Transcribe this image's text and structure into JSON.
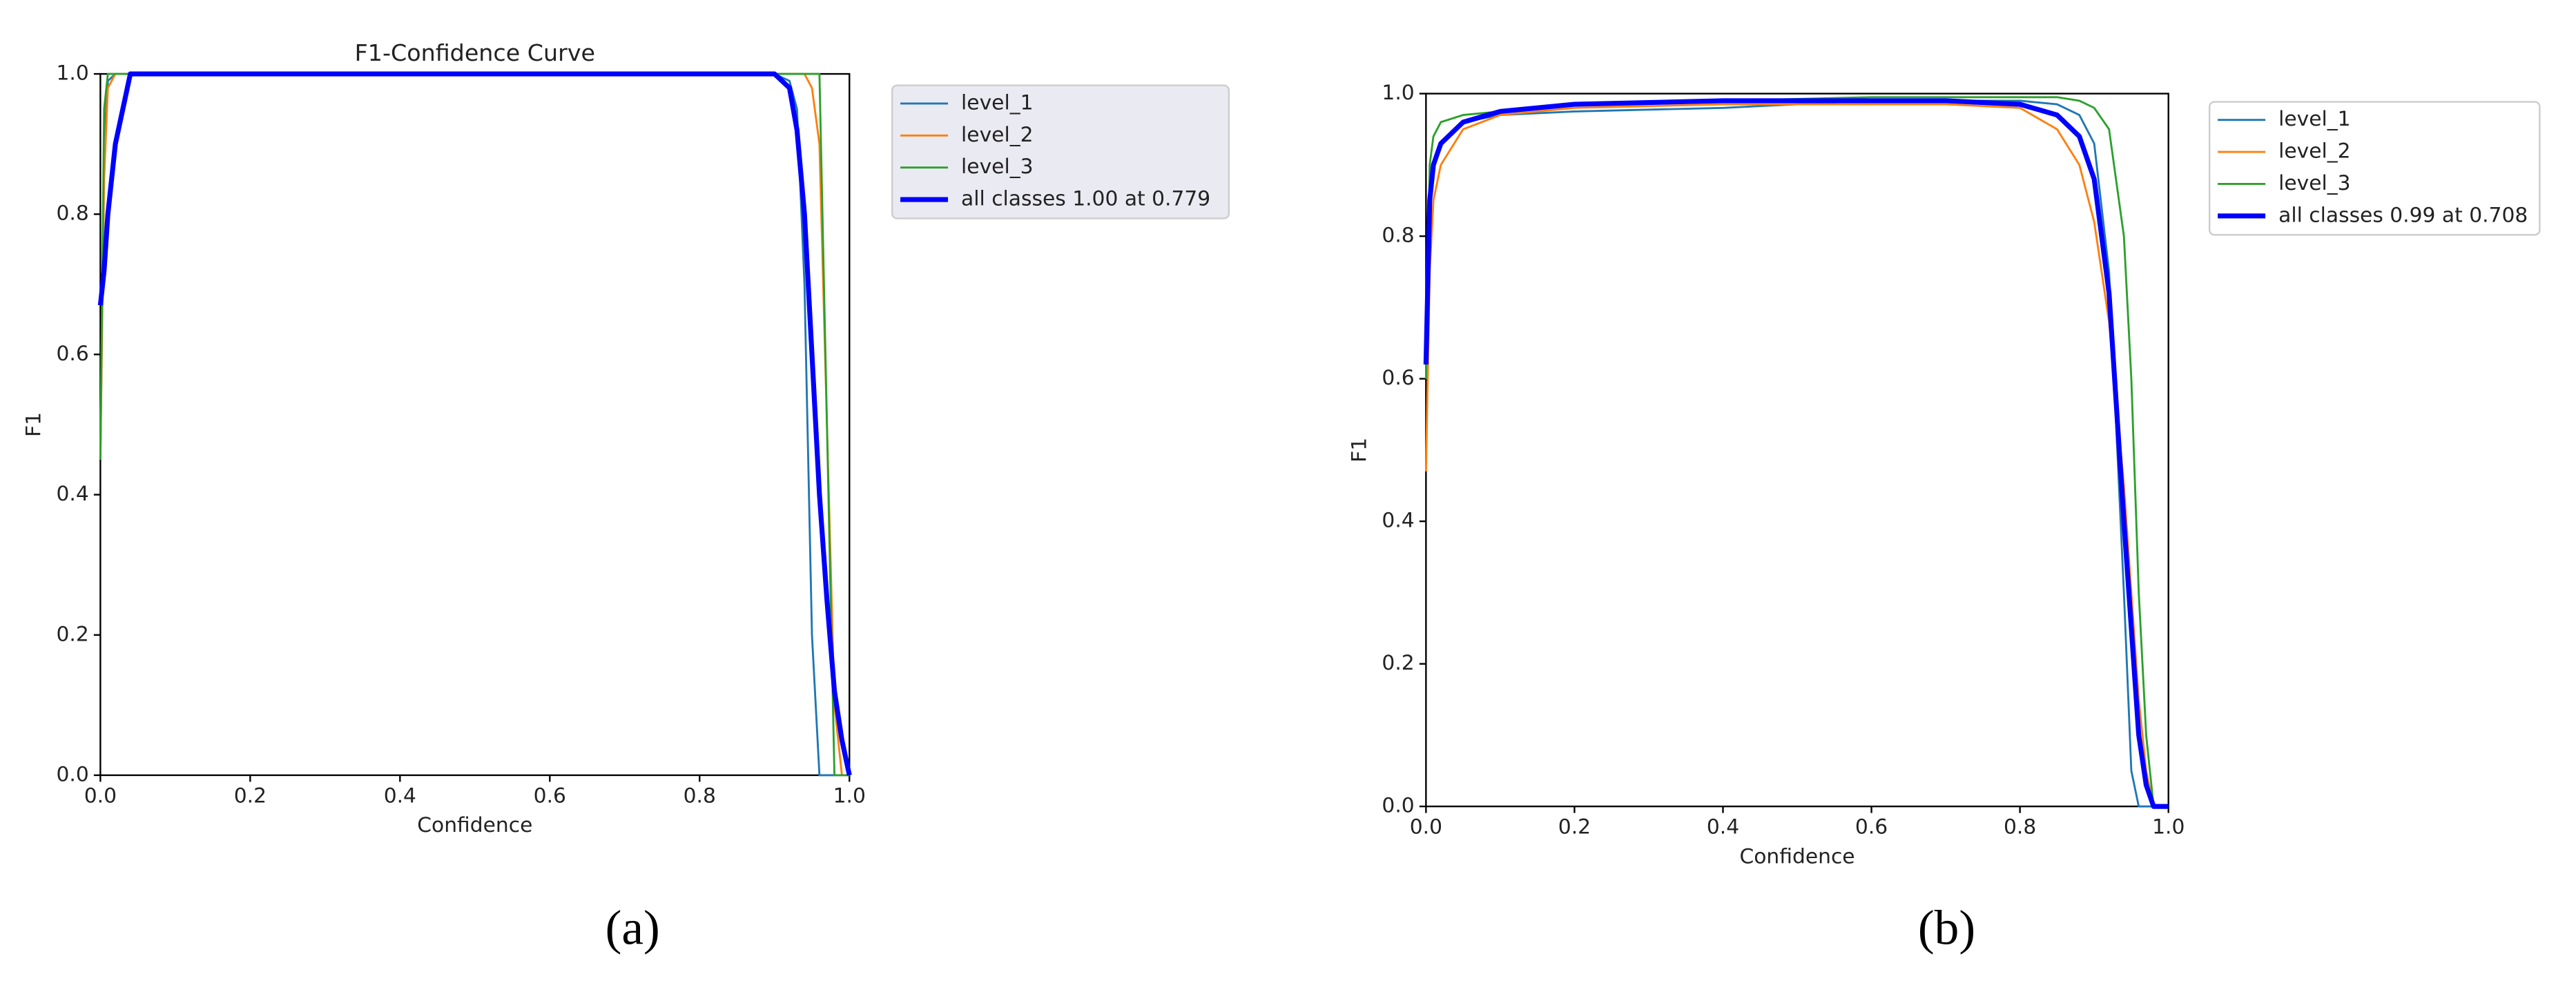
{
  "chart_data": [
    {
      "type": "line",
      "title": "F1-Confidence Curve",
      "xlabel": "Confidence",
      "ylabel": "F1",
      "caption": "(a)",
      "xlim": [
        0,
        1
      ],
      "ylim": [
        0,
        1
      ],
      "xticks": [
        {
          "value": 0,
          "label": "0.0"
        },
        0.2,
        0.4,
        0.6,
        0.8,
        {
          "value": 1,
          "label": "1.0"
        }
      ],
      "yticks": [
        {
          "value": 0,
          "label": "0.0"
        },
        0.2,
        0.4,
        0.6,
        0.8,
        {
          "value": 1,
          "label": "1.0"
        }
      ],
      "x": [
        0,
        0.005,
        0.01,
        0.02,
        0.04,
        0.1,
        0.3,
        0.5,
        0.7,
        0.9,
        0.92,
        0.93,
        0.94,
        0.95,
        0.96,
        0.97,
        0.98,
        0.99,
        1.0
      ],
      "series": [
        {
          "name": "level_1",
          "color": "#1f77b4",
          "values": [
            0.45,
            0.9,
            0.99,
            1,
            1,
            1,
            1,
            1,
            1,
            1,
            0.99,
            0.95,
            0.7,
            0.2,
            0,
            0,
            0,
            0,
            0
          ]
        },
        {
          "name": "level_2",
          "color": "#ff7f0e",
          "values": [
            0.45,
            0.85,
            0.98,
            1,
            1,
            1,
            1,
            1,
            1,
            1,
            1,
            1,
            1,
            0.98,
            0.9,
            0.5,
            0.1,
            0,
            0
          ]
        },
        {
          "name": "level_3",
          "color": "#2ca02c",
          "values": [
            0.45,
            0.95,
            1,
            1,
            1,
            1,
            1,
            1,
            1,
            1,
            1,
            1,
            1,
            1,
            1,
            0.5,
            0,
            0,
            0
          ]
        },
        {
          "name": "all classes 1.00 at 0.779",
          "color": "#0000ff",
          "values": [
            0.67,
            0.72,
            0.8,
            0.9,
            1,
            1,
            1,
            1,
            1,
            1,
            0.98,
            0.92,
            0.8,
            0.6,
            0.4,
            0.25,
            0.12,
            0.05,
            0
          ]
        }
      ]
    },
    {
      "type": "line",
      "xlabel": "Confidence",
      "ylabel": "F1",
      "caption": "(b)",
      "xlim": [
        0,
        1
      ],
      "ylim": [
        0,
        1
      ],
      "xticks": [
        {
          "value": 0,
          "label": "0.0"
        },
        0.2,
        0.4,
        0.6,
        0.8,
        {
          "value": 1,
          "label": "1.0"
        }
      ],
      "yticks": [
        {
          "value": 0,
          "label": "0.0"
        },
        0.2,
        0.4,
        0.6,
        0.8,
        {
          "value": 1,
          "label": "1.0"
        }
      ],
      "x": [
        0,
        0.005,
        0.01,
        0.02,
        0.05,
        0.1,
        0.2,
        0.4,
        0.6,
        0.7,
        0.8,
        0.85,
        0.88,
        0.9,
        0.92,
        0.94,
        0.95,
        0.96,
        0.97,
        0.98,
        1.0
      ],
      "series": [
        {
          "name": "level_1",
          "color": "#1f77b4",
          "values": [
            0.6,
            0.85,
            0.9,
            0.93,
            0.96,
            0.97,
            0.975,
            0.98,
            0.99,
            0.99,
            0.99,
            0.985,
            0.97,
            0.93,
            0.75,
            0.3,
            0.05,
            0,
            0,
            0,
            0
          ]
        },
        {
          "name": "level_2",
          "color": "#ff7f0e",
          "values": [
            0.47,
            0.75,
            0.85,
            0.9,
            0.95,
            0.97,
            0.98,
            0.985,
            0.985,
            0.985,
            0.98,
            0.95,
            0.9,
            0.82,
            0.68,
            0.45,
            0.3,
            0.15,
            0.05,
            0,
            0
          ]
        },
        {
          "name": "level_3",
          "color": "#2ca02c",
          "values": [
            0.6,
            0.9,
            0.94,
            0.96,
            0.97,
            0.975,
            0.985,
            0.99,
            0.995,
            0.995,
            0.995,
            0.995,
            0.99,
            0.98,
            0.95,
            0.8,
            0.6,
            0.3,
            0.1,
            0,
            0
          ]
        },
        {
          "name": "all classes 0.99 at 0.708",
          "color": "#0000ff",
          "values": [
            0.62,
            0.85,
            0.9,
            0.93,
            0.96,
            0.975,
            0.985,
            0.99,
            0.99,
            0.99,
            0.985,
            0.97,
            0.94,
            0.88,
            0.72,
            0.4,
            0.25,
            0.1,
            0.03,
            0,
            0
          ]
        }
      ]
    }
  ]
}
